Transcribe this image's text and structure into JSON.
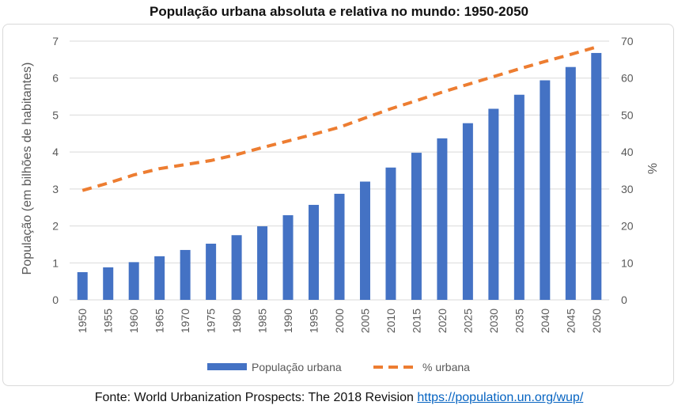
{
  "chart_data": {
    "type": "bar",
    "title": "População urbana absoluta e relativa no mundo: 1950-2050",
    "categories": [
      "1950",
      "1955",
      "1960",
      "1965",
      "1970",
      "1975",
      "1980",
      "1985",
      "1990",
      "1995",
      "2000",
      "2005",
      "2010",
      "2015",
      "2020",
      "2025",
      "2030",
      "2035",
      "2040",
      "2045",
      "2050"
    ],
    "series": [
      {
        "name": "População urbana",
        "type": "bar",
        "axis": "left",
        "color": "#4472c4",
        "values": [
          0.75,
          0.88,
          1.02,
          1.18,
          1.35,
          1.52,
          1.75,
          1.99,
          2.29,
          2.57,
          2.87,
          3.2,
          3.58,
          3.98,
          4.37,
          4.78,
          5.17,
          5.55,
          5.94,
          6.3,
          6.68
        ]
      },
      {
        "name": "% urbana",
        "type": "line",
        "style": "dashed",
        "axis": "right",
        "color": "#ed7d31",
        "values": [
          29.6,
          31.6,
          33.8,
          35.5,
          36.6,
          37.7,
          39.3,
          41.2,
          43.0,
          44.8,
          46.7,
          49.2,
          51.7,
          53.9,
          56.2,
          58.3,
          60.4,
          62.5,
          64.5,
          66.4,
          68.4
        ]
      }
    ],
    "ylabel": "População (em bilhões de habitantes)",
    "y2label": "%",
    "ylim": [
      0,
      7
    ],
    "y2lim": [
      0,
      70
    ],
    "yticks": [
      "0",
      "1",
      "2",
      "3",
      "4",
      "5",
      "6",
      "7"
    ],
    "y2ticks": [
      "0",
      "10",
      "20",
      "30",
      "40",
      "50",
      "60",
      "70"
    ],
    "grid": true,
    "legend": "bottom"
  },
  "footer": {
    "source_text": "Fonte: World Urbanization Prospects: The 2018 Revision",
    "link_text": "https://population.un.org/wup/"
  }
}
